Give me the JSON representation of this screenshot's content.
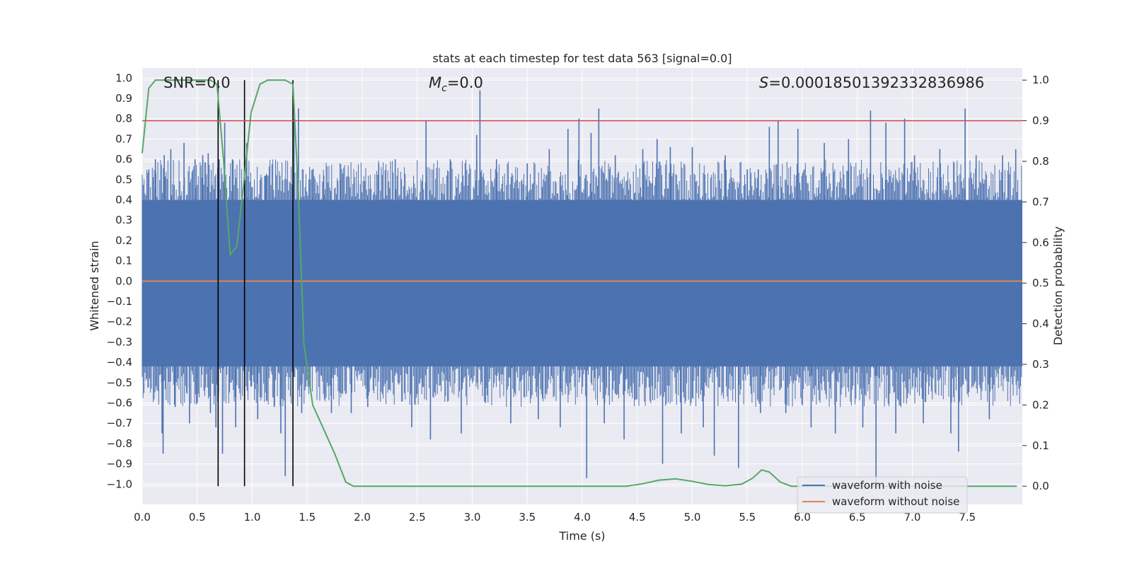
{
  "chart_data": {
    "type": "line",
    "title": "stats at each timestep for test data 563 [signal=0.0]",
    "xlabel": "Time (s)",
    "ylabel_left": "Whitened strain",
    "ylabel_right": "Detection probability",
    "xlim": [
      0.0,
      8.0
    ],
    "ylim_left": [
      -1.1,
      1.05
    ],
    "ylim_right": [
      -0.045,
      1.03
    ],
    "x_ticks": [
      "0.0",
      "0.5",
      "1.0",
      "1.5",
      "2.0",
      "2.5",
      "3.0",
      "3.5",
      "4.0",
      "4.5",
      "5.0",
      "5.5",
      "6.0",
      "6.5",
      "7.0",
      "7.5"
    ],
    "y_ticks_left": [
      "1.0",
      "0.9",
      "0.8",
      "0.7",
      "0.6",
      "0.5",
      "0.4",
      "0.3",
      "0.2",
      "0.1",
      "0.0",
      "−0.1",
      "−0.2",
      "−0.3",
      "−0.4",
      "−0.5",
      "−0.6",
      "−0.7",
      "−0.8",
      "−0.9",
      "−1.0"
    ],
    "y_ticks_right": [
      "1.0",
      "0.9",
      "0.8",
      "0.7",
      "0.6",
      "0.5",
      "0.4",
      "0.3",
      "0.2",
      "0.1",
      "0.0"
    ],
    "annotations": {
      "snr": "SNR=0.0",
      "mc_symbol": "M",
      "mc_subscript": "c",
      "mc_value": "=0.0",
      "s_symbol": "S",
      "s_value": "=0.00018501392332836986"
    },
    "threshold_right": 0.9,
    "vertical_lines_x": [
      0.69,
      0.93,
      1.37
    ],
    "series": [
      {
        "name": "waveform with noise",
        "color": "#4c72b0",
        "axis": "left",
        "envelope_upper": 0.4,
        "envelope_lower": -0.42
      },
      {
        "name": "waveform without noise",
        "color": "#dd8452",
        "axis": "left",
        "values_constant": 0.0
      },
      {
        "name": "Detection probability",
        "color": "#55a868",
        "axis": "right",
        "x": [
          0.0,
          0.06,
          0.12,
          0.25,
          0.4,
          0.55,
          0.62,
          0.68,
          0.74,
          0.8,
          0.86,
          0.92,
          0.99,
          1.07,
          1.14,
          1.22,
          1.3,
          1.37,
          1.42,
          1.47,
          1.55,
          1.65,
          1.75,
          1.85,
          1.92,
          2.0,
          2.5,
          3.0,
          3.5,
          4.0,
          4.4,
          4.55,
          4.7,
          4.85,
          5.0,
          5.15,
          5.3,
          5.45,
          5.55,
          5.63,
          5.7,
          5.8,
          5.9,
          6.0,
          6.5,
          7.0,
          7.5,
          7.95
        ],
        "y": [
          0.82,
          0.98,
          1.0,
          1.0,
          1.0,
          1.0,
          1.0,
          0.99,
          0.8,
          0.57,
          0.59,
          0.74,
          0.92,
          0.99,
          1.0,
          1.0,
          1.0,
          0.99,
          0.72,
          0.35,
          0.2,
          0.14,
          0.08,
          0.01,
          0.0,
          0.0,
          0.0,
          0.0,
          0.0,
          0.0,
          0.0,
          0.006,
          0.015,
          0.018,
          0.012,
          0.004,
          0.001,
          0.005,
          0.02,
          0.04,
          0.035,
          0.01,
          0.0,
          0.0,
          0.0,
          0.0,
          0.0,
          0.0
        ]
      },
      {
        "name": "Threshold",
        "color": "#c44e52",
        "axis": "right",
        "value": 0.9
      }
    ],
    "noise_spikes": [
      {
        "x": 0.06,
        "y": 0.55
      },
      {
        "x": 0.12,
        "y": 0.6
      },
      {
        "x": 0.18,
        "y": -0.75
      },
      {
        "x": 0.2,
        "y": 0.62
      },
      {
        "x": 0.19,
        "y": -0.85
      },
      {
        "x": 0.26,
        "y": 0.65
      },
      {
        "x": 0.3,
        "y": -0.62
      },
      {
        "x": 0.38,
        "y": 0.68
      },
      {
        "x": 0.43,
        "y": -0.7
      },
      {
        "x": 0.48,
        "y": 0.6
      },
      {
        "x": 0.5,
        "y": -0.6
      },
      {
        "x": 0.55,
        "y": 0.62
      },
      {
        "x": 0.6,
        "y": 0.63
      },
      {
        "x": 0.62,
        "y": -0.65
      },
      {
        "x": 0.67,
        "y": -0.72
      },
      {
        "x": 0.7,
        "y": 0.6
      },
      {
        "x": 0.75,
        "y": 0.78
      },
      {
        "x": 0.73,
        "y": -0.85
      },
      {
        "x": 0.82,
        "y": 0.6
      },
      {
        "x": 0.85,
        "y": -0.72
      },
      {
        "x": 0.95,
        "y": 0.68
      },
      {
        "x": 0.99,
        "y": -0.52
      },
      {
        "x": 1.05,
        "y": -0.68
      },
      {
        "x": 1.12,
        "y": 0.52
      },
      {
        "x": 1.2,
        "y": -0.62
      },
      {
        "x": 1.26,
        "y": -0.75
      },
      {
        "x": 1.3,
        "y": -0.96
      },
      {
        "x": 1.38,
        "y": 0.8
      },
      {
        "x": 1.42,
        "y": 0.85
      },
      {
        "x": 1.45,
        "y": -0.65
      },
      {
        "x": 1.55,
        "y": 0.55
      },
      {
        "x": 1.65,
        "y": 0.52
      },
      {
        "x": 1.72,
        "y": -0.65
      },
      {
        "x": 1.8,
        "y": 0.5
      },
      {
        "x": 1.9,
        "y": -0.65
      },
      {
        "x": 2.05,
        "y": -0.62
      },
      {
        "x": 2.15,
        "y": 0.58
      },
      {
        "x": 2.3,
        "y": 0.6
      },
      {
        "x": 2.45,
        "y": -0.72
      },
      {
        "x": 2.58,
        "y": 0.79
      },
      {
        "x": 2.62,
        "y": -0.78
      },
      {
        "x": 2.8,
        "y": 0.6
      },
      {
        "x": 2.9,
        "y": -0.75
      },
      {
        "x": 3.04,
        "y": 0.72
      },
      {
        "x": 3.07,
        "y": 0.94
      },
      {
        "x": 3.12,
        "y": -0.6
      },
      {
        "x": 3.22,
        "y": 0.6
      },
      {
        "x": 3.35,
        "y": -0.7
      },
      {
        "x": 3.5,
        "y": 0.58
      },
      {
        "x": 3.6,
        "y": -0.68
      },
      {
        "x": 3.7,
        "y": 0.65
      },
      {
        "x": 3.8,
        "y": -0.72
      },
      {
        "x": 3.87,
        "y": 0.75
      },
      {
        "x": 3.97,
        "y": 0.8
      },
      {
        "x": 4.04,
        "y": -0.97
      },
      {
        "x": 4.08,
        "y": 0.73
      },
      {
        "x": 4.15,
        "y": 0.85
      },
      {
        "x": 4.2,
        "y": -0.7
      },
      {
        "x": 4.3,
        "y": 0.62
      },
      {
        "x": 4.38,
        "y": -0.78
      },
      {
        "x": 4.55,
        "y": 0.65
      },
      {
        "x": 4.68,
        "y": 0.7
      },
      {
        "x": 4.73,
        "y": -0.9
      },
      {
        "x": 4.8,
        "y": 0.66
      },
      {
        "x": 4.9,
        "y": -0.75
      },
      {
        "x": 5.0,
        "y": 0.66
      },
      {
        "x": 5.1,
        "y": -0.72
      },
      {
        "x": 5.2,
        "y": -0.86
      },
      {
        "x": 5.3,
        "y": 0.62
      },
      {
        "x": 5.42,
        "y": -0.92
      },
      {
        "x": 5.5,
        "y": 0.55
      },
      {
        "x": 5.6,
        "y": 0.55
      },
      {
        "x": 5.62,
        "y": -0.65
      },
      {
        "x": 5.7,
        "y": 0.76
      },
      {
        "x": 5.78,
        "y": 0.79
      },
      {
        "x": 5.85,
        "y": -0.65
      },
      {
        "x": 5.96,
        "y": 0.75
      },
      {
        "x": 6.08,
        "y": -0.72
      },
      {
        "x": 6.2,
        "y": 0.68
      },
      {
        "x": 6.3,
        "y": -0.75
      },
      {
        "x": 6.42,
        "y": 0.7
      },
      {
        "x": 6.55,
        "y": -0.72
      },
      {
        "x": 6.62,
        "y": 0.84
      },
      {
        "x": 6.67,
        "y": -1.0
      },
      {
        "x": 6.76,
        "y": 0.78
      },
      {
        "x": 6.85,
        "y": -0.75
      },
      {
        "x": 6.93,
        "y": 0.8
      },
      {
        "x": 7.02,
        "y": 0.62
      },
      {
        "x": 7.1,
        "y": -0.7
      },
      {
        "x": 7.25,
        "y": 0.65
      },
      {
        "x": 7.35,
        "y": -0.75
      },
      {
        "x": 7.42,
        "y": -0.84
      },
      {
        "x": 7.48,
        "y": 0.85
      },
      {
        "x": 7.58,
        "y": 0.62
      },
      {
        "x": 7.7,
        "y": -0.68
      },
      {
        "x": 7.82,
        "y": 0.62
      },
      {
        "x": 7.94,
        "y": 0.65
      }
    ]
  },
  "legend": {
    "items": [
      {
        "label": "waveform with noise",
        "color": "#4c72b0"
      },
      {
        "label": "waveform without noise",
        "color": "#dd8452"
      }
    ]
  }
}
